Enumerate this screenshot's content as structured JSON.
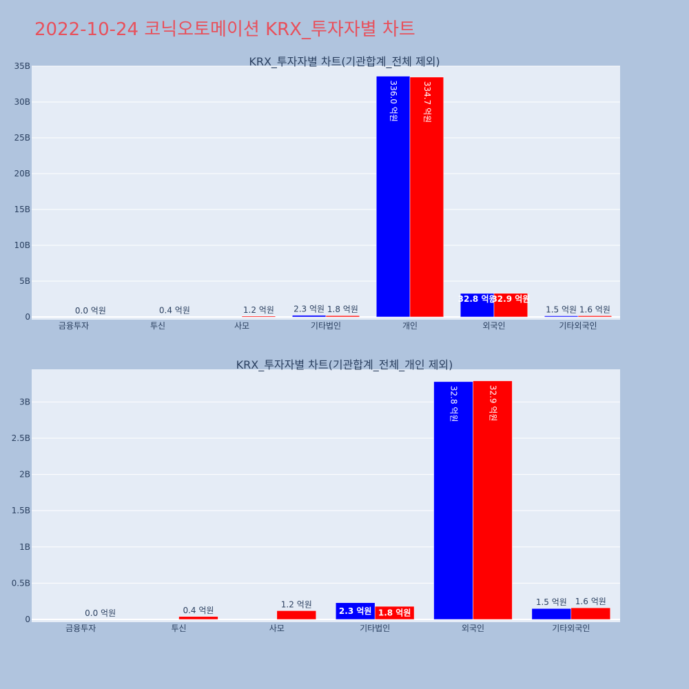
{
  "page_title": "2022-10-24 코닉오토메이션 KRX_투자자별 차트",
  "chart_data": [
    {
      "type": "bar",
      "title": "KRX_투자자별 차트(기관합계_전체 제외)",
      "categories": [
        "금융투자",
        "투신",
        "사모",
        "기타법인",
        "개인",
        "외국인",
        "기타외국인"
      ],
      "series": [
        {
          "color": "#0000ff",
          "values": [
            0,
            0,
            0,
            230000000,
            33600000000,
            3280000000,
            150000000
          ]
        },
        {
          "color": "#ff0000",
          "values": [
            0,
            40000000,
            120000000,
            180000000,
            33470000000,
            3290000000,
            160000000
          ]
        }
      ],
      "labels": [
        [
          null,
          null,
          null,
          "2.3 억원",
          "336.0 억원",
          "32.8 억원",
          "1.5 억원"
        ],
        [
          "0.0 억원",
          "0.4 억원",
          "1.2 억원",
          "1.8 억원",
          "334.7 억원",
          "32.9 억원",
          "1.6 억원"
        ]
      ],
      "ylim": [
        0,
        35000000000
      ],
      "yticks": [
        0,
        5000000000,
        10000000000,
        15000000000,
        20000000000,
        25000000000,
        30000000000,
        35000000000
      ],
      "ytick_labels": [
        "0",
        "5B",
        "10B",
        "15B",
        "20B",
        "25B",
        "30B",
        "35B"
      ],
      "xlabel": "",
      "ylabel": "",
      "grid": true
    },
    {
      "type": "bar",
      "title": "KRX_투자자별 차트(기관합계_전체_개인 제외)",
      "categories": [
        "금융투자",
        "투신",
        "사모",
        "기타법인",
        "외국인",
        "기타외국인"
      ],
      "series": [
        {
          "color": "#0000ff",
          "values": [
            0,
            0,
            0,
            230000000,
            3280000000,
            150000000
          ]
        },
        {
          "color": "#ff0000",
          "values": [
            0,
            40000000,
            120000000,
            180000000,
            3290000000,
            160000000
          ]
        }
      ],
      "labels": [
        [
          null,
          null,
          null,
          "2.3 억원",
          "32.8 억원",
          "1.5 억원"
        ],
        [
          "0.0 억원",
          "0.4 억원",
          "1.2 억원",
          "1.8 억원",
          "32.9 억원",
          "1.6 억원"
        ]
      ],
      "ylim": [
        0,
        3450000000
      ],
      "yticks": [
        0,
        500000000,
        1000000000,
        1500000000,
        2000000000,
        2500000000,
        3000000000
      ],
      "ytick_labels": [
        "0",
        "0.5B",
        "1B",
        "1.5B",
        "2B",
        "2.5B",
        "3B"
      ],
      "xlabel": "",
      "ylabel": "",
      "grid": true
    }
  ]
}
